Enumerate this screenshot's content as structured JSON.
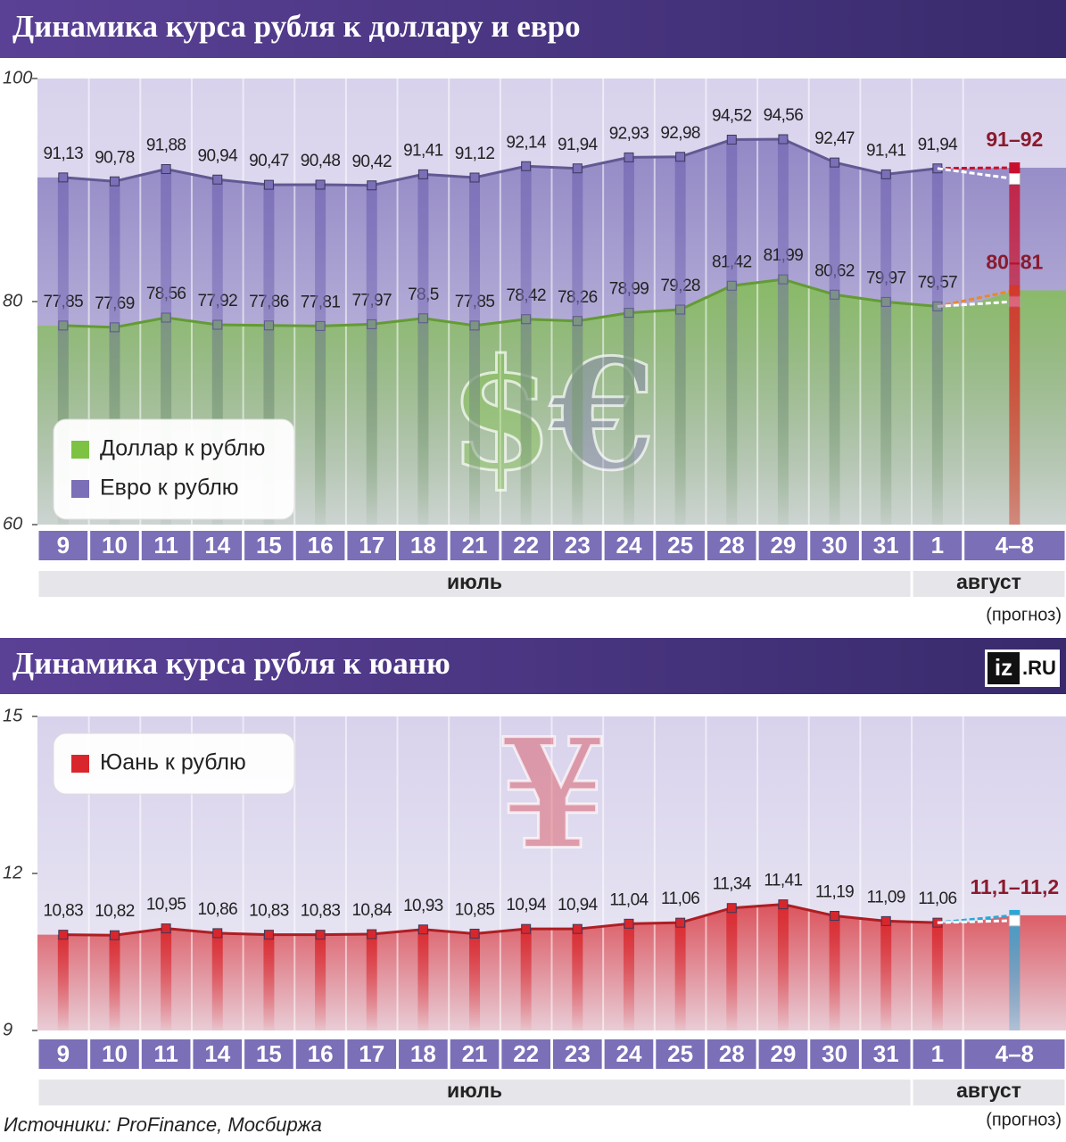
{
  "chart_data": [
    {
      "type": "line",
      "title": "Динамика курса рубля к доллару и евро",
      "categories": [
        "9",
        "10",
        "11",
        "14",
        "15",
        "16",
        "17",
        "18",
        "21",
        "22",
        "23",
        "24",
        "25",
        "28",
        "29",
        "30",
        "31",
        "1",
        "4–8"
      ],
      "months": [
        {
          "label": "июль",
          "categories": 17
        },
        {
          "label": "август",
          "categories": 2
        }
      ],
      "note": "(прогноз)",
      "ylim": [
        60,
        100
      ],
      "yticks": [
        60,
        80,
        100
      ],
      "grid": false,
      "legend": "left",
      "symbols": [
        "$",
        "€"
      ],
      "series": [
        {
          "name": "Доллар к рублю",
          "color": "#7dc242",
          "forecast_color": "#e8892a",
          "values": [
            77.85,
            77.69,
            78.56,
            77.92,
            77.86,
            77.81,
            77.97,
            78.5,
            77.85,
            78.42,
            78.26,
            78.99,
            79.28,
            81.42,
            81.99,
            80.62,
            79.97,
            79.57,
            null
          ],
          "value_labels": [
            "77,85",
            "77,69",
            "78,56",
            "77,92",
            "77,86",
            "77,81",
            "77,97",
            "78,5",
            "77,85",
            "78,42",
            "78,26",
            "78,99",
            "79,28",
            "81,42",
            "81,99",
            "80,62",
            "79,97",
            "79,57",
            null
          ],
          "forecast": {
            "low": 80,
            "high": 81,
            "label": "80–81"
          }
        },
        {
          "name": "Евро к рублю",
          "color": "#7b6fb8",
          "forecast_color": "#c8102e",
          "values": [
            91.13,
            90.78,
            91.88,
            90.94,
            90.47,
            90.48,
            90.42,
            91.41,
            91.12,
            92.14,
            91.94,
            92.93,
            92.98,
            94.52,
            94.56,
            92.47,
            91.41,
            91.94,
            null
          ],
          "value_labels": [
            "91,13",
            "90,78",
            "91,88",
            "90,94",
            "90,47",
            "90,48",
            "90,42",
            "91,41",
            "91,12",
            "92,14",
            "91,94",
            "92,93",
            "92,98",
            "94,52",
            "94,56",
            "92,47",
            "91,41",
            "91,94",
            null
          ],
          "forecast": {
            "low": 91,
            "high": 92,
            "label": "91–92"
          }
        }
      ]
    },
    {
      "type": "line",
      "title": "Динамика курса рубля к юаню",
      "categories": [
        "9",
        "10",
        "11",
        "14",
        "15",
        "16",
        "17",
        "18",
        "21",
        "22",
        "23",
        "24",
        "25",
        "28",
        "29",
        "30",
        "31",
        "1",
        "4–8"
      ],
      "months": [
        {
          "label": "июль",
          "categories": 17
        },
        {
          "label": "август",
          "categories": 2
        }
      ],
      "note": "(прогноз)",
      "ylim": [
        9,
        15
      ],
      "yticks": [
        9,
        12,
        15
      ],
      "grid": false,
      "legend": "left",
      "symbols": [
        "¥"
      ],
      "series": [
        {
          "name": "Юань к рублю",
          "color": "#d9262c",
          "forecast_color": "#2aa8d8",
          "values": [
            10.83,
            10.82,
            10.95,
            10.86,
            10.83,
            10.83,
            10.84,
            10.93,
            10.85,
            10.94,
            10.94,
            11.04,
            11.06,
            11.34,
            11.41,
            11.19,
            11.09,
            11.06,
            null
          ],
          "value_labels": [
            "10,83",
            "10,82",
            "10,95",
            "10,86",
            "10,83",
            "10,83",
            "10,84",
            "10,93",
            "10,85",
            "10,94",
            "10,94",
            "11,04",
            "11,06",
            "11,34",
            "11,41",
            "11,19",
            "11,09",
            "11,06",
            null
          ],
          "forecast": {
            "low": 11.1,
            "high": 11.2,
            "label": "11,1–11,2"
          }
        }
      ]
    }
  ],
  "source": "Источники: ProFinance, Мосбиржа",
  "logo": {
    "mark": "iz",
    "domain": ".RU"
  }
}
